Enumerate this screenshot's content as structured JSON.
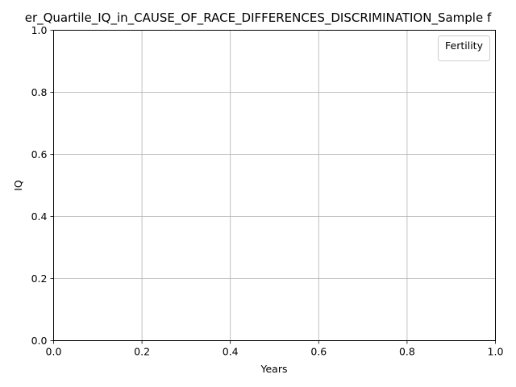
{
  "chart_data": {
    "type": "line",
    "title": "er_Quartile_IQ_in_CAUSE_OF_RACE_DIFFERENCES_DISCRIMINATION_Sample f",
    "xlabel": "Years",
    "ylabel": "IQ",
    "xlim": [
      0.0,
      1.0
    ],
    "ylim": [
      0.0,
      1.0
    ],
    "xticks": [
      "0.0",
      "0.2",
      "0.4",
      "0.6",
      "0.8",
      "1.0"
    ],
    "yticks": [
      "0.0",
      "0.2",
      "0.4",
      "0.6",
      "0.8",
      "1.0"
    ],
    "grid": true,
    "legend": {
      "title": "Fertility",
      "placement": "top-right",
      "entries": []
    },
    "series": []
  }
}
